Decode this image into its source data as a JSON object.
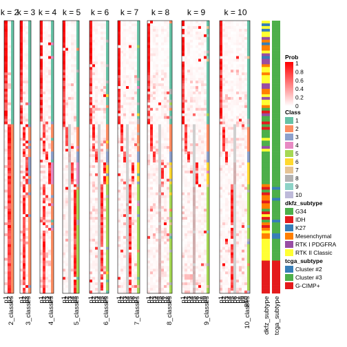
{
  "chart_data": {
    "type": "heatmap",
    "panels": [
      {
        "title": "k = 2",
        "columns": [
          "p1",
          "p2"
        ],
        "class_label": "2_classes",
        "n_classes": 2
      },
      {
        "title": "k = 3",
        "columns": [
          "p1",
          "p2",
          "p3"
        ],
        "class_label": "3_classes",
        "n_classes": 3
      },
      {
        "title": "k = 4",
        "columns": [
          "p1",
          "p2",
          "p3",
          "p4"
        ],
        "class_label": "4_classes",
        "n_classes": 4
      },
      {
        "title": "k = 5",
        "columns": [
          "p1",
          "p2",
          "p3",
          "p4",
          "p5"
        ],
        "class_label": "5_classes",
        "n_classes": 5
      },
      {
        "title": "k = 6",
        "columns": [
          "p1",
          "p2",
          "p3",
          "p4",
          "p5",
          "p6"
        ],
        "class_label": "6_classes",
        "n_classes": 6
      },
      {
        "title": "k = 7",
        "columns": [
          "p1",
          "p2",
          "p3",
          "p4",
          "p5",
          "p6",
          "p7"
        ],
        "class_label": "7_classes",
        "n_classes": 7
      },
      {
        "title": "k = 8",
        "columns": [
          "p1",
          "p2",
          "p3",
          "p4",
          "p5",
          "p6",
          "p7",
          "p8"
        ],
        "class_label": "8_classes",
        "n_classes": 8
      },
      {
        "title": "k = 9",
        "columns": [
          "p1",
          "p2",
          "p3",
          "p4",
          "p5",
          "p6",
          "p7",
          "p8",
          "p9"
        ],
        "class_label": "9_classes",
        "n_classes": 9
      },
      {
        "title": "k = 10",
        "columns": [
          "p1",
          "p2",
          "p3",
          "p4",
          "p5",
          "p6",
          "p7",
          "p8",
          "p9",
          "p10"
        ],
        "class_label": "10_classes",
        "n_classes": 10
      }
    ],
    "annotation_columns": [
      "dkfz_subtype",
      "tcga_subtype"
    ],
    "legends": {
      "prob": {
        "title": "Prob",
        "ticks": [
          "1",
          "0.8",
          "0.6",
          "0.4",
          "0.2",
          "0"
        ],
        "low_color": "#ffffff",
        "high_color": "#ff0000"
      },
      "class": {
        "title": "Class",
        "items": [
          {
            "label": "1",
            "color": "#66c2a5"
          },
          {
            "label": "2",
            "color": "#fc8d62"
          },
          {
            "label": "3",
            "color": "#8da0cb"
          },
          {
            "label": "4",
            "color": "#e78ac3"
          },
          {
            "label": "5",
            "color": "#a6d854"
          },
          {
            "label": "6",
            "color": "#ffd92f"
          },
          {
            "label": "7",
            "color": "#e5c494"
          },
          {
            "label": "8",
            "color": "#b3b3b3"
          },
          {
            "label": "9",
            "color": "#8dd3c7"
          },
          {
            "label": "10",
            "color": "#bebada"
          }
        ]
      },
      "dkfz_subtype": {
        "title": "dkfz_subtype",
        "items": [
          {
            "label": "G34",
            "color": "#4daf4a"
          },
          {
            "label": "IDH",
            "color": "#e41a1c"
          },
          {
            "label": "K27",
            "color": "#377eb8"
          },
          {
            "label": "Mesenchymal",
            "color": "#ff7f00"
          },
          {
            "label": "RTK I PDGFRA",
            "color": "#984ea3"
          },
          {
            "label": "RTK II Classic",
            "color": "#ffff33"
          }
        ]
      },
      "tcga_subtype": {
        "title": "tcga_subtype",
        "items": [
          {
            "label": "Cluster #2",
            "color": "#377eb8"
          },
          {
            "label": "Cluster #3",
            "color": "#4daf4a"
          },
          {
            "label": "G-CIMP+",
            "color": "#e41a1c"
          }
        ]
      }
    }
  }
}
